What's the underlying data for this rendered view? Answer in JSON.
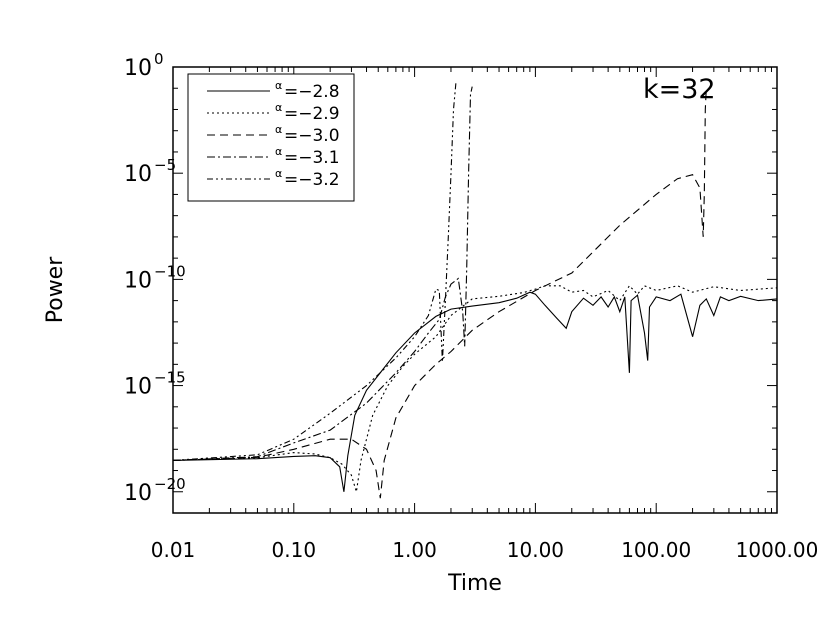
{
  "chart_data": {
    "type": "line",
    "title": "",
    "xlabel": "Time",
    "ylabel": "Power",
    "annotation": "k=32",
    "x_scale": "log",
    "y_scale": "log",
    "xlim": [
      0.01,
      1000
    ],
    "ylim": [
      1e-21,
      1
    ],
    "x_ticks": [
      {
        "value": 0.01,
        "label": "0.01"
      },
      {
        "value": 0.1,
        "label": "0.10"
      },
      {
        "value": 1,
        "label": "1.00"
      },
      {
        "value": 10,
        "label": "10.00"
      },
      {
        "value": 100,
        "label": "100.00"
      },
      {
        "value": 1000,
        "label": "1000.00"
      }
    ],
    "y_ticks": [
      {
        "value": 1,
        "base": "10",
        "exp": "0"
      },
      {
        "value": 1e-05,
        "base": "10",
        "exp": "−5"
      },
      {
        "value": 1e-10,
        "base": "10",
        "exp": "−10"
      },
      {
        "value": 1e-15,
        "base": "10",
        "exp": "−15"
      },
      {
        "value": 1e-20,
        "base": "10",
        "exp": "−20"
      }
    ],
    "grid": false,
    "legend_position": "top-left",
    "series": [
      {
        "name": "α=−2.8",
        "label_prefix": "α",
        "label_value": "=−2.8",
        "dash": "solid",
        "points": [
          [
            0.01,
            3e-19
          ],
          [
            0.05,
            3.6e-19
          ],
          [
            0.1,
            4.6e-19
          ],
          [
            0.15,
            5e-19
          ],
          [
            0.2,
            4e-19
          ],
          [
            0.24,
            1.5e-19
          ],
          [
            0.26,
            1e-20
          ],
          [
            0.28,
            5e-19
          ],
          [
            0.32,
            4e-17
          ],
          [
            0.4,
            6e-16
          ],
          [
            0.5,
            3e-15
          ],
          [
            0.7,
            3.5e-14
          ],
          [
            1.0,
            3e-13
          ],
          [
            1.5,
            1.8e-12
          ],
          [
            2,
            4e-12
          ],
          [
            3,
            5.5e-12
          ],
          [
            5,
            8e-12
          ],
          [
            7,
            1.3e-11
          ],
          [
            9,
            2.5e-11
          ],
          [
            10,
            2e-11
          ],
          [
            12,
            6e-12
          ],
          [
            15,
            1.5e-12
          ],
          [
            18,
            5e-13
          ],
          [
            20,
            3e-12
          ],
          [
            25,
            1.3e-11
          ],
          [
            30,
            6e-12
          ],
          [
            35,
            1.5e-11
          ],
          [
            40,
            5e-12
          ],
          [
            45,
            1.5e-11
          ],
          [
            50,
            3e-12
          ],
          [
            55,
            1.5e-11
          ],
          [
            60,
            4e-15
          ],
          [
            62,
            1e-11
          ],
          [
            70,
            1.8e-11
          ],
          [
            80,
            3e-13
          ],
          [
            85,
            1.5e-14
          ],
          [
            88,
            5e-12
          ],
          [
            100,
            1.5e-11
          ],
          [
            130,
            1e-11
          ],
          [
            160,
            2e-11
          ],
          [
            200,
            2e-13
          ],
          [
            230,
            6e-12
          ],
          [
            260,
            1.2e-11
          ],
          [
            300,
            2e-12
          ],
          [
            340,
            1.5e-11
          ],
          [
            400,
            1e-11
          ],
          [
            500,
            1.6e-11
          ],
          [
            700,
            1e-11
          ],
          [
            1000,
            1.2e-11
          ]
        ]
      },
      {
        "name": "α=−2.9",
        "label_prefix": "α",
        "label_value": "=−2.9",
        "dash": "dot",
        "points": [
          [
            0.01,
            3e-19
          ],
          [
            0.05,
            4e-19
          ],
          [
            0.1,
            7e-19
          ],
          [
            0.15,
            6e-19
          ],
          [
            0.2,
            4e-19
          ],
          [
            0.25,
            2e-19
          ],
          [
            0.3,
            6e-20
          ],
          [
            0.33,
            1e-20
          ],
          [
            0.36,
            3e-19
          ],
          [
            0.45,
            4e-17
          ],
          [
            0.6,
            1e-15
          ],
          [
            0.8,
            8e-15
          ],
          [
            1.0,
            3e-14
          ],
          [
            1.5,
            2e-13
          ],
          [
            2,
            2e-12
          ],
          [
            3,
            1.2e-11
          ],
          [
            5,
            1.6e-11
          ],
          [
            8,
            2.4e-11
          ],
          [
            10,
            3.5e-11
          ],
          [
            12,
            5e-11
          ],
          [
            16,
            5e-11
          ],
          [
            20,
            2.5e-11
          ],
          [
            25,
            3e-11
          ],
          [
            30,
            1.5e-11
          ],
          [
            40,
            3e-11
          ],
          [
            50,
            1e-11
          ],
          [
            60,
            5e-11
          ],
          [
            70,
            2e-11
          ],
          [
            80,
            5e-11
          ],
          [
            100,
            3e-11
          ],
          [
            150,
            5e-11
          ],
          [
            200,
            2.5e-11
          ],
          [
            300,
            4.5e-11
          ],
          [
            500,
            3e-11
          ],
          [
            1000,
            4e-11
          ]
        ]
      },
      {
        "name": "α=−3.0",
        "label_prefix": "α",
        "label_value": "=−3.0",
        "dash": "dash",
        "points": [
          [
            0.01,
            3e-19
          ],
          [
            0.05,
            4.2e-19
          ],
          [
            0.1,
            1e-18
          ],
          [
            0.2,
            3e-18
          ],
          [
            0.3,
            3e-18
          ],
          [
            0.4,
            1e-18
          ],
          [
            0.48,
            1e-19
          ],
          [
            0.52,
            5e-21
          ],
          [
            0.56,
            3e-19
          ],
          [
            0.7,
            3e-17
          ],
          [
            1.0,
            1e-15
          ],
          [
            1.5,
            1e-14
          ],
          [
            2,
            4e-14
          ],
          [
            3,
            4e-13
          ],
          [
            5,
            3e-12
          ],
          [
            10,
            3e-11
          ],
          [
            20,
            2e-10
          ],
          [
            50,
            3.5e-08
          ],
          [
            100,
            1e-06
          ],
          [
            150,
            5.5e-06
          ],
          [
            200,
            8.5e-06
          ],
          [
            230,
            2e-06
          ],
          [
            245,
            1e-08
          ],
          [
            250,
            1e-06
          ],
          [
            255,
            0.01
          ],
          [
            260,
            0.1
          ]
        ]
      },
      {
        "name": "α=−3.1",
        "label_prefix": "α",
        "label_value": "=−3.1",
        "dash": "dashdot",
        "points": [
          [
            0.01,
            3e-19
          ],
          [
            0.05,
            4.5e-19
          ],
          [
            0.1,
            2e-18
          ],
          [
            0.2,
            8e-18
          ],
          [
            0.4,
            1.5e-16
          ],
          [
            0.7,
            4e-15
          ],
          [
            1.0,
            4e-14
          ],
          [
            1.3,
            3e-13
          ],
          [
            1.6,
            1.3e-12
          ],
          [
            1.8,
            1.5e-11
          ],
          [
            2.0,
            6e-11
          ],
          [
            2.3,
            1.1e-10
          ],
          [
            2.5,
            3e-12
          ],
          [
            2.6,
            7e-14
          ],
          [
            2.7,
            3e-10
          ],
          [
            2.8,
            1e-05
          ],
          [
            2.9,
            0.05
          ],
          [
            3.0,
            0.12
          ]
        ]
      },
      {
        "name": "α=−3.2",
        "label_prefix": "α",
        "label_value": "=−3.2",
        "dash": "dashdotdot",
        "points": [
          [
            0.01,
            3e-19
          ],
          [
            0.05,
            5.5e-19
          ],
          [
            0.1,
            3e-18
          ],
          [
            0.2,
            5e-17
          ],
          [
            0.4,
            1e-15
          ],
          [
            0.7,
            2e-14
          ],
          [
            1.0,
            2e-13
          ],
          [
            1.3,
            2e-12
          ],
          [
            1.5,
            3.5e-11
          ],
          [
            1.6,
            3e-11
          ],
          [
            1.7,
            1.3e-14
          ],
          [
            1.8,
            1e-11
          ],
          [
            1.9,
            1e-08
          ],
          [
            2.0,
            1e-05
          ],
          [
            2.1,
            0.01
          ],
          [
            2.2,
            0.2
          ]
        ]
      }
    ]
  }
}
